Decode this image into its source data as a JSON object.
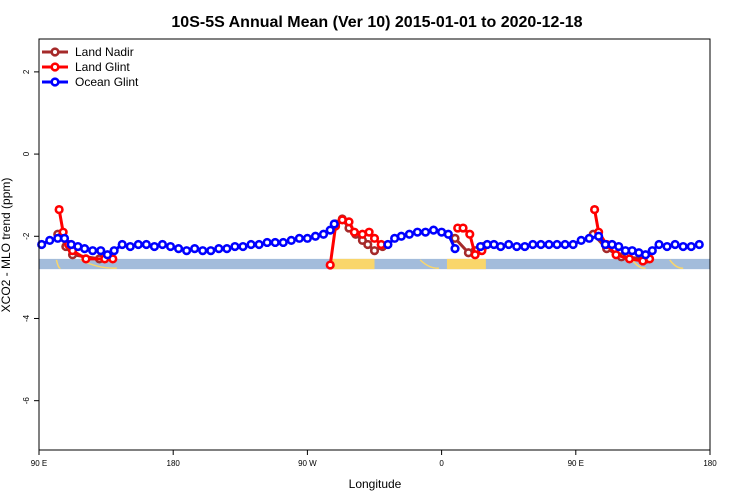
{
  "chart_data": {
    "type": "line",
    "title": "10S-5S Annual Mean (Ver 10)   2015-01-01 to 2020-12-18",
    "xlabel": "Longitude",
    "ylabel": "XCO2 - MLO trend (ppm)",
    "xlim": [
      -90,
      160
    ],
    "ylim": [
      -7.2,
      2.8
    ],
    "x_ticks": [
      -90,
      -40,
      10,
      60,
      110,
      160
    ],
    "x_tick_labels": [
      "90 E",
      "180",
      "90 W",
      "0",
      "90 E",
      "180"
    ],
    "y_ticks": [
      2,
      0,
      -2,
      -4,
      -6
    ],
    "y_tick_labels": [
      "2",
      "0",
      "-2",
      "-4",
      "-6"
    ],
    "grid": false,
    "legend_position": "top-left",
    "land_strip": {
      "y_top": -2.55,
      "y_bottom": -2.8,
      "ocean_color": "#a3bcdb",
      "land_color": "#f9d66b",
      "land_segments": [
        [
          18.5,
          35.0
        ],
        [
          62.0,
          76.5
        ]
      ],
      "island_ranges": [
        [
          -83.5,
          -82.0
        ],
        [
          -74.5,
          -61.0
        ],
        [
          52.0,
          59.0
        ],
        [
          131.0,
          136.0
        ],
        [
          145.0,
          150.0
        ]
      ]
    },
    "series": [
      {
        "name": "Land Nadir",
        "color": "#a52a2a",
        "segments": [
          [
            [
              -83.0,
              -1.95
            ],
            [
              -81.5,
              -2.0
            ],
            [
              -80.0,
              -2.25
            ],
            [
              -77.5,
              -2.45
            ],
            [
              -67.5,
              -2.55
            ]
          ],
          [
            [
              20.5,
              -1.7
            ],
            [
              23.0,
              -1.58
            ],
            [
              25.5,
              -1.8
            ],
            [
              28.0,
              -1.95
            ],
            [
              30.5,
              -2.1
            ],
            [
              32.5,
              -2.2
            ],
            [
              35.0,
              -2.35
            ],
            [
              38.0,
              -2.25
            ]
          ],
          [
            [
              65.0,
              -2.05
            ],
            [
              70.0,
              -2.4
            ],
            [
              72.5,
              -2.35
            ],
            [
              75.5,
              -2.25
            ]
          ],
          [
            [
              116.5,
              -1.95
            ],
            [
              121.5,
              -2.3
            ],
            [
              127.0,
              -2.5
            ],
            [
              136.5,
              -2.55
            ]
          ]
        ]
      },
      {
        "name": "Land Glint",
        "color": "#ff0000",
        "segments": [
          [
            [
              -82.5,
              -1.35
            ],
            [
              -81.0,
              -1.9
            ],
            [
              -79.0,
              -2.2
            ],
            [
              -77.5,
              -2.35
            ],
            [
              -72.5,
              -2.55
            ],
            [
              -65.5,
              -2.55
            ],
            [
              -62.5,
              -2.55
            ]
          ],
          [
            [
              18.5,
              -2.7
            ],
            [
              20.5,
              -1.75
            ],
            [
              23.0,
              -1.6
            ],
            [
              25.5,
              -1.65
            ],
            [
              27.5,
              -1.9
            ],
            [
              30.5,
              -1.95
            ],
            [
              33.0,
              -1.9
            ],
            [
              35.0,
              -2.05
            ],
            [
              37.5,
              -2.2
            ]
          ],
          [
            [
              66.0,
              -1.8
            ],
            [
              68.0,
              -1.8
            ],
            [
              70.5,
              -1.95
            ],
            [
              72.5,
              -2.45
            ],
            [
              75.0,
              -2.35
            ]
          ],
          [
            [
              117.0,
              -1.35
            ],
            [
              118.5,
              -1.9
            ],
            [
              121.5,
              -2.2
            ],
            [
              125.0,
              -2.45
            ],
            [
              130.0,
              -2.55
            ],
            [
              135.0,
              -2.6
            ],
            [
              137.5,
              -2.55
            ]
          ]
        ]
      },
      {
        "name": "Ocean Glint",
        "color": "#0000ff",
        "segments": [
          [
            [
              -89.0,
              -2.2
            ],
            [
              -86.0,
              -2.1
            ],
            [
              -83.0,
              -2.05
            ],
            [
              -80.5,
              -2.05
            ],
            [
              -78.0,
              -2.2
            ],
            [
              -75.5,
              -2.25
            ],
            [
              -73.0,
              -2.3
            ],
            [
              -70.0,
              -2.35
            ],
            [
              -67.0,
              -2.35
            ],
            [
              -64.5,
              -2.45
            ],
            [
              -62.0,
              -2.35
            ],
            [
              -59.0,
              -2.2
            ],
            [
              -56.0,
              -2.25
            ],
            [
              -53.0,
              -2.2
            ],
            [
              -50.0,
              -2.2
            ],
            [
              -47.0,
              -2.25
            ],
            [
              -44.0,
              -2.2
            ],
            [
              -41.0,
              -2.25
            ],
            [
              -38.0,
              -2.3
            ],
            [
              -35.0,
              -2.35
            ],
            [
              -32.0,
              -2.3
            ],
            [
              -29.0,
              -2.35
            ],
            [
              -26.0,
              -2.35
            ],
            [
              -23.0,
              -2.3
            ],
            [
              -20.0,
              -2.3
            ],
            [
              -17.0,
              -2.25
            ],
            [
              -14.0,
              -2.25
            ],
            [
              -11.0,
              -2.2
            ],
            [
              -8.0,
              -2.2
            ],
            [
              -5.0,
              -2.15
            ],
            [
              -2.0,
              -2.15
            ],
            [
              1.0,
              -2.15
            ],
            [
              4.0,
              -2.1
            ],
            [
              7.0,
              -2.05
            ],
            [
              10.0,
              -2.05
            ],
            [
              13.0,
              -2.0
            ],
            [
              16.0,
              -1.95
            ],
            [
              18.5,
              -1.85
            ],
            [
              20.0,
              -1.7
            ]
          ],
          [
            [
              40.0,
              -2.2
            ],
            [
              42.5,
              -2.05
            ],
            [
              45.0,
              -2.0
            ],
            [
              48.0,
              -1.95
            ],
            [
              51.0,
              -1.9
            ],
            [
              54.0,
              -1.9
            ],
            [
              57.0,
              -1.85
            ],
            [
              60.0,
              -1.9
            ],
            [
              62.5,
              -1.95
            ],
            [
              65.0,
              -2.3
            ]
          ],
          [
            [
              74.5,
              -2.25
            ],
            [
              77.0,
              -2.2
            ],
            [
              79.5,
              -2.2
            ],
            [
              82.0,
              -2.25
            ],
            [
              85.0,
              -2.2
            ],
            [
              88.0,
              -2.25
            ],
            [
              91.0,
              -2.25
            ],
            [
              94.0,
              -2.2
            ],
            [
              97.0,
              -2.2
            ],
            [
              100.0,
              -2.2
            ],
            [
              103.0,
              -2.2
            ],
            [
              106.0,
              -2.2
            ],
            [
              109.0,
              -2.2
            ],
            [
              112.0,
              -2.1
            ],
            [
              115.0,
              -2.05
            ],
            [
              118.5,
              -2.0
            ],
            [
              121.0,
              -2.2
            ],
            [
              123.5,
              -2.2
            ],
            [
              126.0,
              -2.25
            ],
            [
              128.5,
              -2.35
            ],
            [
              131.0,
              -2.35
            ],
            [
              133.5,
              -2.4
            ],
            [
              136.0,
              -2.45
            ],
            [
              138.5,
              -2.35
            ],
            [
              141.0,
              -2.2
            ],
            [
              144.0,
              -2.25
            ],
            [
              147.0,
              -2.2
            ],
            [
              150.0,
              -2.25
            ],
            [
              153.0,
              -2.25
            ],
            [
              156.0,
              -2.2
            ]
          ]
        ]
      }
    ]
  }
}
